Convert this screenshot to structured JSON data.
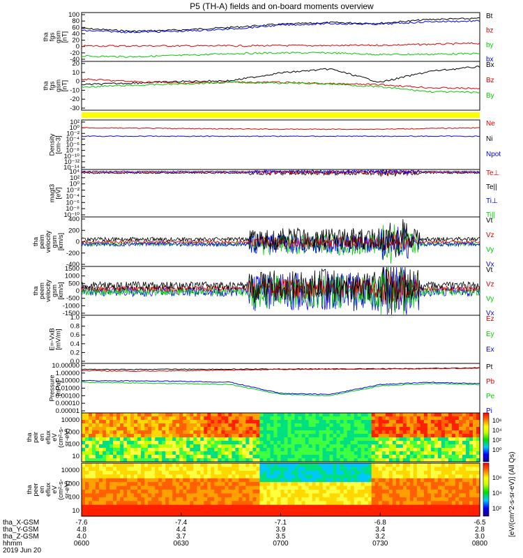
{
  "title": "P5 (TH-A) fields and on-board moments overview",
  "panels": [
    {
      "id": "fgs",
      "ylabel": [
        "tha",
        "fgs",
        "gsm",
        "[nT]"
      ],
      "ticks": [
        "100",
        "80",
        "60",
        "40",
        "20",
        "0",
        "-20",
        "-40"
      ],
      "legend": [
        {
          "t": "Bt",
          "c": "#000000"
        },
        {
          "t": "bz",
          "c": "#e00000"
        },
        {
          "t": "by",
          "c": "#00cc00"
        },
        {
          "t": "bx",
          "c": "#0000ff"
        }
      ]
    },
    {
      "id": "fgs_detail",
      "ylabel": [
        "tha",
        "fgs",
        "gsm",
        "[nT]"
      ],
      "ticks": [
        "20",
        "10",
        "0",
        "-10",
        "-20",
        "-30"
      ],
      "legend": [
        {
          "t": "Bx",
          "c": "#000000"
        },
        {
          "t": "Bz",
          "c": "#e00000"
        },
        {
          "t": "By",
          "c": "#00cc00"
        }
      ]
    },
    {
      "id": "density",
      "ylabel": [
        "Density",
        "[cm-3]"
      ],
      "ticks": [
        "10²",
        "10⁰",
        "10⁻²",
        "10⁻⁴",
        "10⁻⁶",
        "10⁻⁸",
        "10⁻¹⁰",
        "10⁻¹²",
        "10⁻¹⁴"
      ],
      "legend": [
        {
          "t": "Ne",
          "c": "#e00000"
        },
        {
          "t": "Ni",
          "c": "#000000"
        },
        {
          "t": "Npot",
          "c": "#0000ff"
        }
      ]
    },
    {
      "id": "temp",
      "ylabel": [
        "magt3",
        "[eV]"
      ],
      "ticks": [
        "10⁴",
        "10²",
        "10⁰",
        "10⁻²",
        "10⁻⁴",
        "10⁻⁶",
        "10⁻⁸",
        "10⁻¹⁰"
      ],
      "legend": [
        {
          "t": "Te⊥",
          "c": "#e00000"
        },
        {
          "t": "Te||",
          "c": "#000000"
        },
        {
          "t": "Ti⊥",
          "c": "#0000ff"
        },
        {
          "t": "Ti||",
          "c": "#00cc00"
        }
      ]
    },
    {
      "id": "peim",
      "ylabel": [
        "tha",
        "peim",
        "velocity",
        "gsm",
        "[km/s]"
      ],
      "ticks": [
        "400",
        "200",
        "0",
        "-200",
        "-400"
      ],
      "legend": [
        {
          "t": "Vt",
          "c": "#000000"
        },
        {
          "t": "Vz",
          "c": "#e00000"
        },
        {
          "t": "Vy",
          "c": "#00cc00"
        },
        {
          "t": "Vx",
          "c": "#0000ff"
        }
      ]
    },
    {
      "id": "peem",
      "ylabel": [
        "tha",
        "peem",
        "velocity",
        "gsm",
        "[km/s]"
      ],
      "ticks": [
        "1500",
        "1000",
        "500",
        "0",
        "-500",
        "-1000",
        "-1500"
      ],
      "legend": [
        {
          "t": "Vt",
          "c": "#000000"
        },
        {
          "t": "Vz",
          "c": "#e00000"
        },
        {
          "t": "Vy",
          "c": "#00cc00"
        },
        {
          "t": "Vx",
          "c": "#0000ff"
        }
      ]
    },
    {
      "id": "efield",
      "ylabel": [
        "E=-VxB",
        "[mV/m]"
      ],
      "ticks": [
        "1.0",
        "0.8",
        "0.6",
        "0.4",
        "0.2",
        "0.0"
      ],
      "legend": [
        {
          "t": "Ez",
          "c": "#e00000"
        },
        {
          "t": "Ey",
          "c": "#00cc00"
        },
        {
          "t": "Ex",
          "c": "#0000ff"
        }
      ]
    },
    {
      "id": "pressure",
      "ylabel": [
        "Pressure",
        "[nPa]"
      ],
      "ticks": [
        "10.00000",
        "1.00000",
        "0.10000",
        "0.01000",
        "0.00100",
        "0.00010",
        "0.00001"
      ],
      "legend": [
        {
          "t": "Pt",
          "c": "#000000"
        },
        {
          "t": "Pb",
          "c": "#e00000"
        },
        {
          "t": "Pe",
          "c": "#00cc00"
        },
        {
          "t": "Pi",
          "c": "#0000ff"
        }
      ]
    },
    {
      "id": "peir",
      "ylabel": [
        "tha",
        "peir",
        "en",
        "eflux",
        "eV",
        "(cm²-s-",
        "sr-eV)"
      ],
      "ticks": [
        "10000",
        "1000",
        "100",
        "10"
      ]
    },
    {
      "id": "peer",
      "ylabel": [
        "tha",
        "peer",
        "en",
        "eflux",
        "eV",
        "(cm²-s-",
        "sr-eV)"
      ],
      "ticks": [
        "10000",
        "1000",
        "100",
        "10"
      ]
    }
  ],
  "colorbar": {
    "label": "[eV/(cm^2-s-sr-eV)] (All Qs)",
    "upper_ticks": [
      "10⁶",
      "10⁴",
      "10²",
      "10⁰"
    ],
    "lower_ticks": [
      "10⁶",
      "10⁴",
      "10²"
    ]
  },
  "xaxis": {
    "row_labels": [
      "tha_X-GSM",
      "tha_Y-GSM",
      "tha_Z-GSM",
      "hhmm",
      "2019 Jun 20"
    ],
    "ticks": [
      {
        "x": "-7.6",
        "y": "4.8",
        "z": "4.0",
        "t": "0600"
      },
      {
        "x": "-7.4",
        "y": "4.4",
        "z": "3.7",
        "t": "0630"
      },
      {
        "x": "-7.1",
        "y": "3.9",
        "z": "3.5",
        "t": "0700"
      },
      {
        "x": "-6.8",
        "y": "3.4",
        "z": "3.2",
        "t": "0730"
      },
      {
        "x": "-6.5",
        "y": "2.8",
        "z": "3.0",
        "t": "0800"
      }
    ]
  },
  "chart_data": [
    {
      "type": "line",
      "panel": "fgs",
      "ylim": [
        -40,
        100
      ],
      "x_hhmm": [
        "0600",
        "0615",
        "0630",
        "0645",
        "0700",
        "0715",
        "0730",
        "0745",
        "0800"
      ],
      "series": [
        {
          "name": "Bt",
          "color": "#000000",
          "values": [
            57,
            48,
            52,
            60,
            70,
            75,
            73,
            85,
            88
          ]
        },
        {
          "name": "bz",
          "color": "#e00000",
          "values": [
            2,
            2,
            2,
            2,
            3,
            3,
            4,
            7,
            10
          ]
        },
        {
          "name": "by",
          "color": "#00cc00",
          "values": [
            -30,
            -32,
            -28,
            -22,
            -20,
            -20,
            -25,
            -24,
            -22
          ]
        },
        {
          "name": "bx",
          "color": "#0000ff",
          "values": [
            50,
            45,
            48,
            55,
            67,
            72,
            70,
            78,
            80
          ]
        }
      ]
    },
    {
      "type": "line",
      "panel": "fgs_detail",
      "ylim": [
        -35,
        22
      ],
      "x_hhmm": [
        "0600",
        "0615",
        "0630",
        "0645",
        "0700",
        "0715",
        "0730",
        "0745",
        "0800"
      ],
      "series": [
        {
          "name": "Bx",
          "color": "#000000",
          "values": [
            -5,
            -3,
            -1,
            0,
            10,
            15,
            -2,
            12,
            18
          ]
        },
        {
          "name": "Bz",
          "color": "#e00000",
          "values": [
            2,
            -1,
            -3,
            -2,
            -2,
            -4,
            -5,
            -9,
            -10
          ]
        },
        {
          "name": "By",
          "color": "#00cc00",
          "values": [
            -8,
            -6,
            -4,
            -2,
            -3,
            -4,
            -8,
            -14,
            -15
          ]
        }
      ]
    },
    {
      "type": "line",
      "panel": "density",
      "yscale": "log",
      "series": [
        {
          "name": "Ne",
          "color": "#e00000",
          "values": [
            1.0,
            0.5,
            0.3,
            0.3,
            1.0
          ]
        },
        {
          "name": "Npot",
          "color": "#0000ff",
          "values": [
            0.001,
            0.001,
            0.001,
            0.001,
            0.001
          ]
        }
      ]
    },
    {
      "type": "line",
      "panel": "pressure",
      "yscale": "log",
      "ylim": [
        1e-05,
        10
      ],
      "x_hhmm": [
        "0600",
        "0615",
        "0630",
        "0645",
        "0700",
        "0715",
        "0730",
        "0745",
        "0800"
      ],
      "series": [
        {
          "name": "Pt",
          "color": "#000000",
          "values": [
            3.0,
            3.0,
            3.2,
            3.2,
            3.4,
            3.5,
            3.6,
            4.0,
            5.0
          ]
        },
        {
          "name": "Pb",
          "color": "#e00000",
          "values": [
            2.0,
            1.8,
            2.0,
            2.4,
            3.0,
            3.2,
            3.4,
            4.0,
            4.5
          ]
        },
        {
          "name": "Pe",
          "color": "#00cc00",
          "values": [
            0.06,
            0.05,
            0.04,
            0.03,
            0.0015,
            0.001,
            0.02,
            0.04,
            0.03
          ]
        },
        {
          "name": "Pi",
          "color": "#0000ff",
          "values": [
            0.1,
            0.09,
            0.08,
            0.06,
            0.002,
            0.0015,
            0.03,
            0.06,
            0.04
          ]
        }
      ]
    }
  ]
}
